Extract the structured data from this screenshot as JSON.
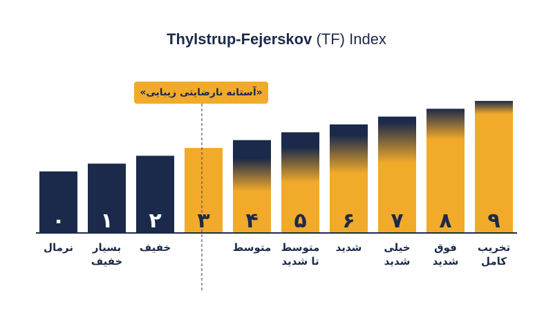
{
  "chart_data": {
    "type": "bar",
    "title_bold": "Thylstrup-Fejerskov",
    "title_rest": " (TF) Index",
    "threshold_label": "«آستانه نارضایتی زیبایی»",
    "threshold_after_index": 3,
    "categories": [
      "۰",
      "۱",
      "۲",
      "۳",
      "۴",
      "۵",
      "۶",
      "۷",
      "۸",
      "۹"
    ],
    "category_names": [
      "نرمال",
      "بسیار\nخفیف",
      "خفیف",
      "",
      "متوسط",
      "متوسط\nتا شدید",
      "شدید",
      "خیلی\nشدید",
      "فوق\nشدید",
      "تخریب\nکامل"
    ],
    "values": [
      1,
      2,
      3,
      4,
      5,
      6,
      7,
      8,
      9,
      10
    ],
    "gold_fraction": [
      0,
      0,
      0,
      1,
      0.45,
      0.5,
      0.55,
      0.6,
      0.75,
      0.9
    ],
    "highlight_index": 3,
    "colors": {
      "navy": "#1b2a4a",
      "gold": "#f2aa2b",
      "white": "#ffffff"
    }
  }
}
